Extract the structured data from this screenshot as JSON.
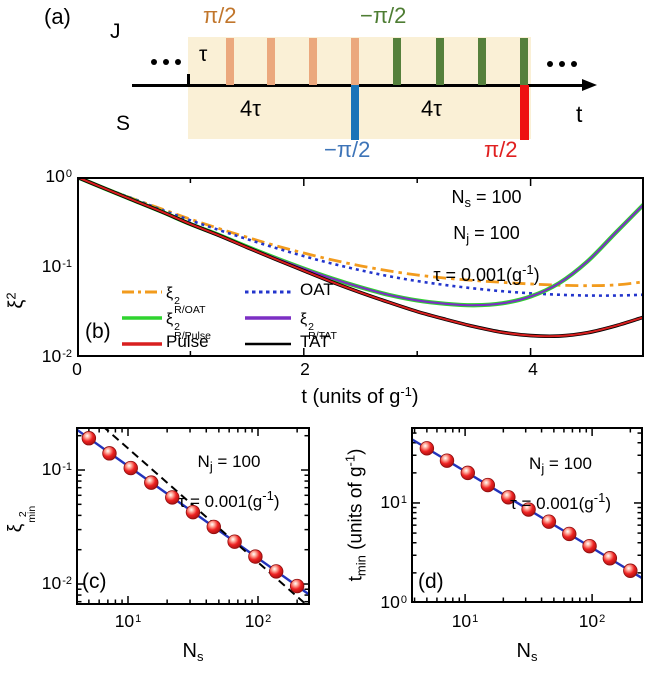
{
  "colors": {
    "cream": "#faf0d6",
    "peach": "#eba87d",
    "peach_text": "#c1762c",
    "olive": "#55803c",
    "olive_text": "#4e7d33",
    "blue_pulse": "#1a74b8",
    "blue_text": "#3d74b8",
    "red_pulse": "#ee1111",
    "red_text": "#e02020",
    "roat": "#f29b1d",
    "oat": "#2335cc",
    "rpulse": "#2fd42f",
    "rtat": "#7c2fc4",
    "pulse": "#d81f1f",
    "tat": "#000000",
    "fit_line": "#2233bb",
    "dash_line": "#000000",
    "ball": "#e32222"
  },
  "panel_a": {
    "label": "(a)",
    "j_label": "J",
    "s_label": "S",
    "tau_label": "τ",
    "four_tau_1": "4τ",
    "four_tau_2": "4τ",
    "pi2_top": "π/2",
    "neg_pi2_top": "−π/2",
    "neg_pi2_bottom": "−π/2",
    "pi2_bottom": "π/2",
    "t_label": "t"
  },
  "panel_b": {
    "label": "(b)",
    "ylabel": {
      "base": "ξ",
      "sup": "2"
    },
    "xlabel": {
      "pre": "t (units of g",
      "sup": "-1",
      "post": ")"
    },
    "yticks": [
      {
        "base": "10",
        "exp": "0"
      },
      {
        "base": "10",
        "exp": "-1"
      },
      {
        "base": "10",
        "exp": "-2"
      }
    ],
    "xticks": [
      "0",
      "2",
      "4"
    ],
    "ann": {
      "l1_base": "N",
      "l1_sub": "s",
      "l1_rest": " = 100",
      "l2_base": "N",
      "l2_sub": "j",
      "l2_rest": " = 100",
      "l3_pre": "τ = 0.001(g",
      "l3_sup": "-1",
      "l3_post": ")"
    },
    "legend": [
      {
        "label": "ξ",
        "sup": "2",
        "sub": "R/OAT"
      },
      {
        "label": "OAT"
      },
      {
        "label": "ξ",
        "sup": "2",
        "sub": "R/Pulse"
      },
      {
        "label": "ξ",
        "sup": "2",
        "sub": "R/TAT"
      },
      {
        "label": "Pulse"
      },
      {
        "label": "TAT"
      }
    ]
  },
  "panel_c": {
    "label": "(c)",
    "ylabel": {
      "base": "ξ",
      "sup": "2",
      "sub": "min"
    },
    "xlabel": {
      "base": "N",
      "sub": "s"
    },
    "yticks": [
      {
        "base": "10",
        "exp": "-1"
      },
      {
        "base": "10",
        "exp": "-2"
      }
    ],
    "xticks": [
      {
        "base": "10",
        "exp": "1"
      },
      {
        "base": "10",
        "exp": "2"
      }
    ],
    "ann": {
      "l1_base": "N",
      "l1_sub": "j",
      "l1_rest": " = 100",
      "l2_pre": "τ = 0.001(g",
      "l2_sup": "-1",
      "l2_post": ")"
    }
  },
  "panel_d": {
    "label": "(d)",
    "ylabel": {
      "pre_base": "t",
      "pre_sub": "min",
      "mid": " (units of g",
      "sup": "-1",
      "post": ")"
    },
    "xlabel": {
      "base": "N",
      "sub": "s"
    },
    "yticks": [
      {
        "base": "10",
        "exp": "1"
      },
      {
        "base": "10",
        "exp": "0"
      }
    ],
    "xticks": [
      {
        "base": "10",
        "exp": "1"
      },
      {
        "base": "10",
        "exp": "2"
      }
    ],
    "ann": {
      "l1_base": "N",
      "l1_sub": "j",
      "l1_rest": " = 100",
      "l2_pre": "τ = 0.001(g",
      "l2_sup": "-1",
      "l2_post": ")"
    }
  },
  "chart_data": [
    {
      "id": "b",
      "type": "line",
      "title": "",
      "xlabel": "t (units of g^-1)",
      "ylabel": "xi^2",
      "x_scale": "linear",
      "y_scale": "log",
      "x_range": [
        0,
        5
      ],
      "y_range": [
        0.01,
        1
      ],
      "xticks": [
        0,
        2,
        4
      ],
      "yticks": [
        1,
        0.1,
        0.01
      ],
      "legend_position": "lower left",
      "params": {
        "N_s": 100,
        "N_j": 100,
        "tau_g_inv": 0.001
      },
      "x": [
        0,
        0.25,
        0.5,
        0.75,
        1,
        1.25,
        1.5,
        1.75,
        2,
        2.25,
        2.5,
        2.75,
        3,
        3.25,
        3.5,
        3.75,
        4,
        4.25,
        4.5,
        4.75,
        5
      ],
      "series": [
        {
          "name": "xi2_R/OAT",
          "style": "dashdot",
          "color_key": "roat",
          "values": [
            1,
            0.75,
            0.57,
            0.44,
            0.34,
            0.268,
            0.214,
            0.173,
            0.143,
            0.12,
            0.103,
            0.0905,
            0.0815,
            0.0752,
            0.0708,
            0.0675,
            0.0648,
            0.0628,
            0.062,
            0.0632,
            0.0685
          ]
        },
        {
          "name": "OAT",
          "style": "dotted",
          "color_key": "oat",
          "values": [
            1,
            0.75,
            0.57,
            0.43,
            0.33,
            0.258,
            0.204,
            0.163,
            0.132,
            0.109,
            0.092,
            0.079,
            0.0698,
            0.063,
            0.0578,
            0.0538,
            0.051,
            0.0492,
            0.0482,
            0.0482,
            0.0492
          ]
        },
        {
          "name": "xi2_R/Pulse",
          "style": "solid",
          "color_key": "rpulse",
          "values": [
            1,
            0.74,
            0.55,
            0.41,
            0.3,
            0.227,
            0.168,
            0.126,
            0.096,
            0.0745,
            0.0595,
            0.049,
            0.0425,
            0.039,
            0.0376,
            0.0395,
            0.047,
            0.066,
            0.115,
            0.24,
            0.5
          ]
        },
        {
          "name": "xi2_R/TAT",
          "style": "solid",
          "color_key": "rtat",
          "values": [
            1,
            0.74,
            0.55,
            0.41,
            0.3,
            0.227,
            0.168,
            0.126,
            0.096,
            0.0745,
            0.0595,
            0.049,
            0.0425,
            0.039,
            0.0376,
            0.0395,
            0.047,
            0.066,
            0.115,
            0.24,
            0.5
          ]
        },
        {
          "name": "TAT",
          "style": "solid",
          "color_key": "tat",
          "values": [
            1,
            0.74,
            0.55,
            0.41,
            0.3,
            0.225,
            0.165,
            0.122,
            0.091,
            0.068,
            0.052,
            0.0405,
            0.032,
            0.0262,
            0.0218,
            0.0188,
            0.0173,
            0.0171,
            0.0186,
            0.0222,
            0.0278
          ]
        },
        {
          "name": "Pulse",
          "style": "solid",
          "color_key": "pulse",
          "values": [
            1,
            0.74,
            0.55,
            0.41,
            0.3,
            0.225,
            0.165,
            0.122,
            0.091,
            0.068,
            0.052,
            0.0405,
            0.032,
            0.0262,
            0.0218,
            0.0188,
            0.0173,
            0.0171,
            0.0186,
            0.0222,
            0.0278
          ]
        }
      ]
    },
    {
      "id": "c",
      "type": "scatter",
      "xlabel": "N_s",
      "ylabel": "xi^2_min",
      "x_scale": "log",
      "y_scale": "log",
      "x_range": [
        3.98,
        251
      ],
      "y_range": [
        0.00655,
        0.2384
      ],
      "xticks": [
        10,
        100
      ],
      "yticks": [
        0.1,
        0.01
      ],
      "params": {
        "N_j": 100,
        "tau_g_inv": 0.001
      },
      "points_x": [
        5,
        7.2,
        10.5,
        15.1,
        21.9,
        31.6,
        45.7,
        66.1,
        95.5,
        138,
        200
      ],
      "points_y": [
        0.19,
        0.14,
        0.104,
        0.0775,
        0.0575,
        0.0427,
        0.0317,
        0.0235,
        0.0174,
        0.0129,
        0.0096
      ],
      "fit_line": {
        "x": [
          3.98,
          251
        ],
        "y": [
          0.2286,
          0.00799
        ]
      },
      "dashed_line": {
        "x": [
          6.4,
          236
        ],
        "y": [
          0.242,
          0.00657
        ]
      }
    },
    {
      "id": "d",
      "type": "scatter",
      "xlabel": "N_s",
      "ylabel": "t_min (units of g^-1)",
      "x_scale": "log",
      "y_scale": "log",
      "x_range": [
        3.75,
        252
      ],
      "y_range": [
        1,
        57.5
      ],
      "xticks": [
        10,
        100
      ],
      "yticks": [
        10,
        1
      ],
      "params": {
        "N_j": 100,
        "tau_g_inv": 0.001
      },
      "points_x": [
        5,
        7.2,
        10.5,
        15.1,
        21.9,
        31.6,
        45.7,
        66.1,
        95.5,
        138,
        200
      ],
      "points_y": [
        35.2,
        26.5,
        20,
        15.1,
        11.4,
        8.6,
        6.5,
        4.9,
        3.7,
        2.8,
        2.1
      ],
      "fit_line": {
        "x": [
          3.75,
          252
        ],
        "y": [
          43.9,
          1.75
        ]
      }
    }
  ]
}
